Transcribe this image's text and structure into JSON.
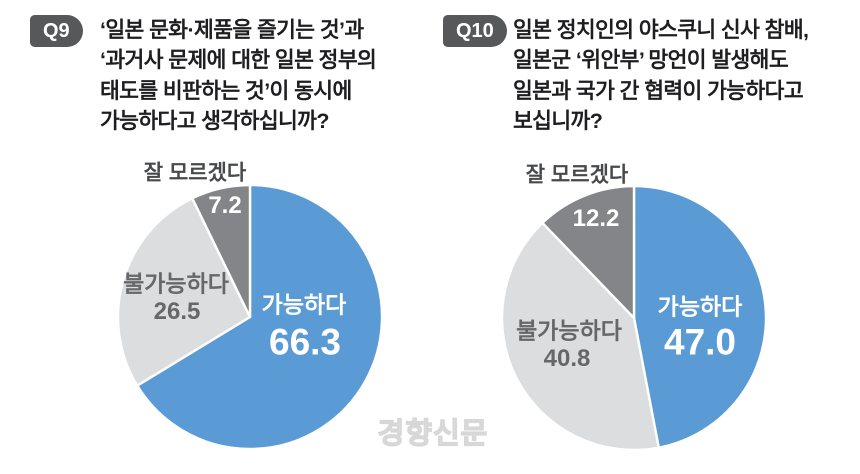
{
  "watermark": "경향신문",
  "colors": {
    "possible_blue": "#5b9bd5",
    "impossible_light_gray": "#dcddde",
    "dontknow_dark_gray": "#838588",
    "badge_bg": "#57585a",
    "question_text": "#1e1e20",
    "outside_label_gray": "#66676a"
  },
  "chart_data": [
    {
      "type": "pie",
      "question_id": "Q9",
      "title": "‘일본 문화·제품을 즐기는 것’과 ‘과거사 문제에 대한 일본 정부의 태도를 비판하는 것’이 동시에 가능하다고 생각하십니까?",
      "title_lines": [
        "‘일본 문화·제품을 즐기는 것’과",
        "‘과거사 문제에 대한 일본 정부의",
        "태도를 비판하는 것’이 동시에",
        "가능하다고 생각하십니까?"
      ],
      "labels": [
        "가능하다",
        "불가능하다",
        "잘 모르겠다"
      ],
      "values": [
        66.3,
        26.5,
        7.2
      ],
      "value_labels": [
        "66.3",
        "26.5",
        "7.2"
      ],
      "colors": [
        "#5b9bd5",
        "#dcddde",
        "#838588"
      ],
      "start_angle_deg": 0,
      "direction": "clockwise",
      "separator_color": "#ffffff",
      "legend_position": "on-slice"
    },
    {
      "type": "pie",
      "question_id": "Q10",
      "title": "일본 정치인의 야스쿠니 신사 참배, 일본군 ‘위안부’ 망언이 발생해도 일본과 국가 간 협력이 가능하다고 보십니까?",
      "title_lines": [
        "일본 정치인의 야스쿠니 신사 참배,",
        "일본군 ‘위안부’ 망언이 발생해도",
        "일본과 국가 간 협력이 가능하다고",
        "보십니까?"
      ],
      "labels": [
        "가능하다",
        "불가능하다",
        "잘 모르겠다"
      ],
      "values": [
        47.0,
        40.8,
        12.2
      ],
      "value_labels": [
        "47.0",
        "40.8",
        "12.2"
      ],
      "colors": [
        "#5b9bd5",
        "#dcddde",
        "#838588"
      ],
      "start_angle_deg": 0,
      "direction": "clockwise",
      "separator_color": "#ffffff",
      "legend_position": "on-slice"
    }
  ]
}
